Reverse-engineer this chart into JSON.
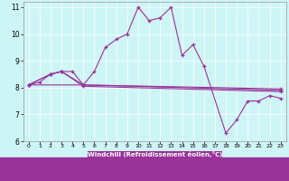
{
  "bg_color": "#cef5f5",
  "line_color": "#993399",
  "xlim": [
    -0.5,
    23.5
  ],
  "ylim": [
    6,
    11.2
  ],
  "xticks": [
    0,
    1,
    2,
    3,
    4,
    5,
    6,
    7,
    8,
    9,
    10,
    11,
    12,
    13,
    14,
    15,
    16,
    17,
    18,
    19,
    20,
    21,
    22,
    23
  ],
  "yticks": [
    6,
    7,
    8,
    9,
    10,
    11
  ],
  "xlabel": "Windchill (Refroidissement éolien,°C)",
  "line1_x": [
    0,
    1,
    2,
    3,
    4,
    5,
    6,
    7,
    8,
    9,
    10,
    11,
    12,
    13,
    14,
    15,
    16,
    18,
    19,
    20,
    21,
    22,
    23
  ],
  "line1_y": [
    8.1,
    8.2,
    8.5,
    8.6,
    8.6,
    8.1,
    8.6,
    9.5,
    9.8,
    10.0,
    11.0,
    10.5,
    10.6,
    11.0,
    9.2,
    9.6,
    8.8,
    6.3,
    6.8,
    7.5,
    7.5,
    7.7,
    7.6
  ],
  "line2_x": [
    0,
    2,
    3,
    5,
    23
  ],
  "line2_y": [
    8.1,
    8.5,
    8.6,
    8.1,
    7.9
  ],
  "line3_x": [
    0,
    2,
    3,
    5,
    23
  ],
  "line3_y": [
    8.1,
    8.5,
    8.6,
    8.05,
    7.85
  ],
  "line4_x": [
    0,
    5,
    23
  ],
  "line4_y": [
    8.1,
    8.1,
    7.95
  ]
}
